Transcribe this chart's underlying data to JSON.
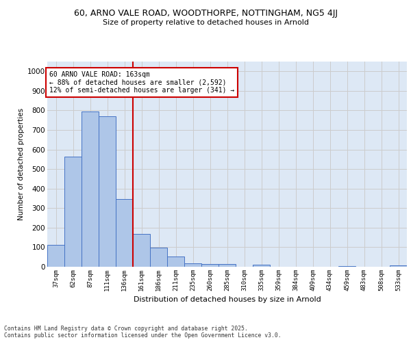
{
  "title_line1": "60, ARNO VALE ROAD, WOODTHORPE, NOTTINGHAM, NG5 4JJ",
  "title_line2": "Size of property relative to detached houses in Arnold",
  "xlabel": "Distribution of detached houses by size in Arnold",
  "ylabel": "Number of detached properties",
  "categories": [
    "37sqm",
    "62sqm",
    "87sqm",
    "111sqm",
    "136sqm",
    "161sqm",
    "186sqm",
    "211sqm",
    "235sqm",
    "260sqm",
    "285sqm",
    "310sqm",
    "335sqm",
    "359sqm",
    "384sqm",
    "409sqm",
    "434sqm",
    "459sqm",
    "483sqm",
    "508sqm",
    "533sqm"
  ],
  "values": [
    113,
    563,
    795,
    770,
    348,
    168,
    97,
    52,
    18,
    13,
    13,
    0,
    10,
    0,
    0,
    0,
    0,
    5,
    0,
    0,
    7
  ],
  "bar_color": "#aec6e8",
  "bar_edge_color": "#4472c4",
  "vline_x": 4.5,
  "vline_color": "#cc0000",
  "annotation_text": "60 ARNO VALE ROAD: 163sqm\n← 88% of detached houses are smaller (2,592)\n12% of semi-detached houses are larger (341) →",
  "ylim": [
    0,
    1050
  ],
  "yticks": [
    0,
    100,
    200,
    300,
    400,
    500,
    600,
    700,
    800,
    900,
    1000
  ],
  "grid_color": "#cccccc",
  "background_color": "#dde8f5",
  "footer_text": "Contains HM Land Registry data © Crown copyright and database right 2025.\nContains public sector information licensed under the Open Government Licence v3.0."
}
